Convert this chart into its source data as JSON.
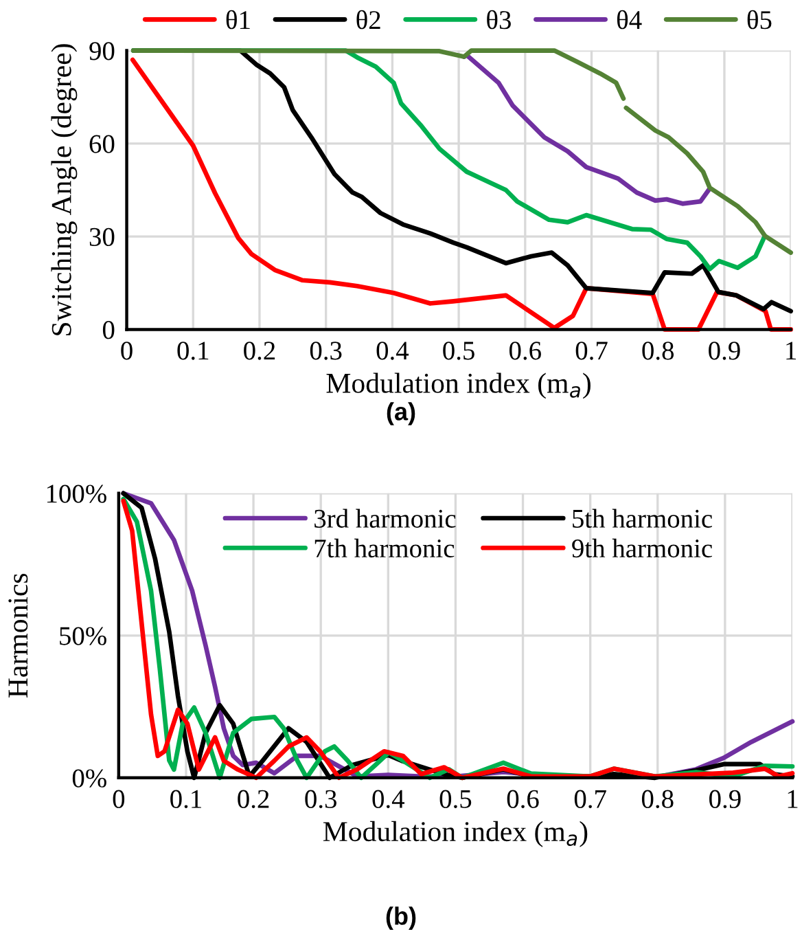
{
  "chart_data": [
    {
      "type": "line",
      "xlabel": "Modulation index (m$_{a}$)",
      "ylabel": "Switching Angle (degree)",
      "xlim": [
        0,
        1
      ],
      "ylim": [
        0,
        90
      ],
      "xticks": [
        0,
        0.1,
        0.2,
        0.3,
        0.4,
        0.5,
        0.6,
        0.7,
        0.8,
        0.9,
        1
      ],
      "yticks": [
        0,
        30,
        60,
        90
      ],
      "grid": true,
      "legend": "top",
      "annotations": [
        "(a)"
      ],
      "series": [
        {
          "name": "θ1",
          "color": "#ff0000",
          "x": [
            0.009,
            0.1,
            0.133,
            0.168,
            0.188,
            0.223,
            0.264,
            0.306,
            0.347,
            0.402,
            0.457,
            0.492,
            0.571,
            0.644,
            0.672,
            0.692,
            0.792,
            0.81,
            0.861,
            0.889,
            0.918,
            0.962,
            0.97,
            1.0
          ],
          "values": [
            87,
            59.3,
            44,
            29.5,
            24.3,
            19.2,
            15.9,
            15.2,
            14,
            11.8,
            8.4,
            9.1,
            11,
            0.5,
            4.4,
            13.3,
            11.5,
            0,
            0,
            12.1,
            11,
            5.9,
            0,
            0
          ]
        },
        {
          "name": "θ2",
          "color": "#000000",
          "x": [
            0.01,
            0.171,
            0.195,
            0.216,
            0.237,
            0.25,
            0.278,
            0.313,
            0.34,
            0.354,
            0.382,
            0.416,
            0.457,
            0.492,
            0.512,
            0.571,
            0.609,
            0.64,
            0.664,
            0.692,
            0.792,
            0.81,
            0.851,
            0.868,
            0.891,
            0.918,
            0.959,
            0.971,
            1.0
          ],
          "values": [
            90,
            90,
            85.5,
            82.6,
            78.2,
            70.8,
            62,
            50.1,
            44.2,
            42.8,
            37.6,
            33.9,
            31,
            28,
            26.5,
            21.4,
            23.6,
            24.8,
            20.7,
            13.3,
            11.8,
            18.4,
            18,
            20.7,
            12.1,
            11,
            6.6,
            8.8,
            5.9
          ]
        },
        {
          "name": "θ3",
          "color": "#00b050",
          "x": [
            0.01,
            0.33,
            0.347,
            0.375,
            0.402,
            0.413,
            0.444,
            0.471,
            0.512,
            0.571,
            0.588,
            0.636,
            0.664,
            0.692,
            0.761,
            0.789,
            0.813,
            0.844,
            0.864,
            0.878,
            0.892,
            0.92,
            0.947,
            0.961
          ],
          "values": [
            90,
            90,
            87.8,
            84.8,
            79.6,
            73,
            65.6,
            58.3,
            50.9,
            45,
            41.3,
            35.4,
            34.6,
            36.9,
            32.4,
            32.2,
            29.2,
            28,
            23.6,
            19.5,
            22.1,
            19.9,
            23.6,
            30.2
          ]
        },
        {
          "name": "θ4",
          "color": "#7030a0",
          "x": [
            0.508,
            0.512,
            0.56,
            0.581,
            0.629,
            0.664,
            0.692,
            0.74,
            0.768,
            0.796,
            0.813,
            0.837,
            0.864,
            0.878
          ],
          "values": [
            88,
            88.5,
            79.6,
            72.3,
            62,
            57.5,
            52.4,
            48.7,
            44.2,
            41.6,
            42,
            40.6,
            41.3,
            45.5
          ]
        },
        {
          "name": "θ5",
          "color": "#548235",
          "x": [
            0.01,
            0.471,
            0.508,
            0.519,
            0.644,
            0.679,
            0.713,
            0.737,
            0.748,
            0.75,
            0.752,
            0.796,
            0.816,
            0.844,
            0.868,
            0.878,
            0.92,
            0.947,
            0.961,
            1.0
          ],
          "values": [
            90,
            89.8,
            88,
            90,
            90,
            86.3,
            82.6,
            79.6,
            74.5,
            null,
            71.5,
            64.2,
            62,
            56.8,
            50.9,
            45.7,
            39.8,
            34.6,
            30.2,
            24.8
          ]
        }
      ]
    },
    {
      "type": "line",
      "xlabel": "Modulation index (m$_{a}$)",
      "ylabel": "Harmonics",
      "xlim": [
        0,
        1
      ],
      "ylim": [
        0,
        100
      ],
      "xticks": [
        0,
        0.1,
        0.2,
        0.3,
        0.4,
        0.5,
        0.6,
        0.7,
        0.8,
        0.9,
        1
      ],
      "yticks": [
        {
          "value": 0,
          "label": "0%"
        },
        {
          "value": 50,
          "label": "50%"
        },
        {
          "value": 100,
          "label": "100%"
        }
      ],
      "grid": true,
      "legend": "top",
      "annotations": [
        "(b)"
      ],
      "series": [
        {
          "name": "3rd harmonic",
          "color": "#7030a0",
          "x": [
            0.007,
            0.048,
            0.082,
            0.109,
            0.129,
            0.143,
            0.156,
            0.17,
            0.184,
            0.204,
            0.231,
            0.265,
            0.299,
            0.354,
            0.4,
            0.45,
            0.5,
            0.571,
            0.65,
            0.803,
            0.857,
            0.898,
            0.939,
            1.0
          ],
          "values": [
            100,
            96.5,
            83.6,
            65.8,
            46.5,
            32,
            17.4,
            7.7,
            4.5,
            5.3,
            1.6,
            7.7,
            7.7,
            0.5,
            1,
            0.5,
            0.5,
            2,
            0.5,
            0.5,
            3,
            7,
            12.6,
            19.8
          ]
        },
        {
          "name": "5th harmonic",
          "color": "#000000",
          "x": [
            0.007,
            0.034,
            0.054,
            0.075,
            0.088,
            0.102,
            0.112,
            0.129,
            0.15,
            0.17,
            0.194,
            0.214,
            0.252,
            0.279,
            0.313,
            0.347,
            0.4,
            0.42,
            0.483,
            0.51,
            0.571,
            0.612,
            0.7,
            0.735,
            0.796,
            0.857,
            0.898,
            0.952,
            0.973,
            1.0
          ],
          "values": [
            100,
            94.9,
            77,
            51.3,
            28.7,
            9.3,
            0,
            15.8,
            25.5,
            19,
            0.5,
            6.1,
            17.4,
            12.6,
            0,
            4.5,
            8,
            6,
            1.3,
            0,
            3,
            0.5,
            0.5,
            1.3,
            0,
            2.6,
            4.8,
            4.8,
            1.3,
            0.5
          ]
        },
        {
          "name": "7th harmonic",
          "color": "#00b050",
          "x": [
            0.007,
            0.027,
            0.048,
            0.061,
            0.075,
            0.082,
            0.095,
            0.112,
            0.129,
            0.15,
            0.17,
            0.197,
            0.231,
            0.245,
            0.265,
            0.279,
            0.306,
            0.32,
            0.34,
            0.36,
            0.381,
            0.401,
            0.422,
            0.462,
            0.49,
            0.51,
            0.571,
            0.612,
            0.7,
            0.735,
            0.796,
            0.857,
            0.912,
            0.959,
            1.0
          ],
          "values": [
            98,
            90,
            65.8,
            38.4,
            6.1,
            2.9,
            19,
            24.7,
            15.8,
            0,
            15.8,
            20.7,
            21.4,
            17.4,
            6.1,
            0,
            9.3,
            11,
            6,
            0,
            4.5,
            8.9,
            6,
            0,
            3,
            0,
            5.3,
            1.5,
            0.5,
            3.2,
            0.5,
            2,
            0.5,
            4.2,
            4
          ]
        },
        {
          "name": "9th harmonic",
          "color": "#ff0000",
          "x": [
            0.007,
            0.02,
            0.034,
            0.048,
            0.058,
            0.068,
            0.088,
            0.102,
            0.119,
            0.143,
            0.156,
            0.177,
            0.204,
            0.231,
            0.252,
            0.279,
            0.299,
            0.327,
            0.354,
            0.394,
            0.422,
            0.449,
            0.483,
            0.51,
            0.571,
            0.612,
            0.7,
            0.735,
            0.796,
            0.912,
            0.959,
            0.98,
            1.0
          ],
          "values": [
            97.3,
            86.8,
            54.5,
            22.3,
            7.7,
            9.3,
            23.9,
            19,
            2.9,
            14.2,
            6,
            2.9,
            0,
            6,
            11,
            14.2,
            9.3,
            0,
            3,
            9.3,
            7.7,
            1.3,
            3.7,
            0,
            3.2,
            0.5,
            0.5,
            3.2,
            0.5,
            1.8,
            3.2,
            0.5,
            1.6
          ]
        }
      ]
    }
  ]
}
